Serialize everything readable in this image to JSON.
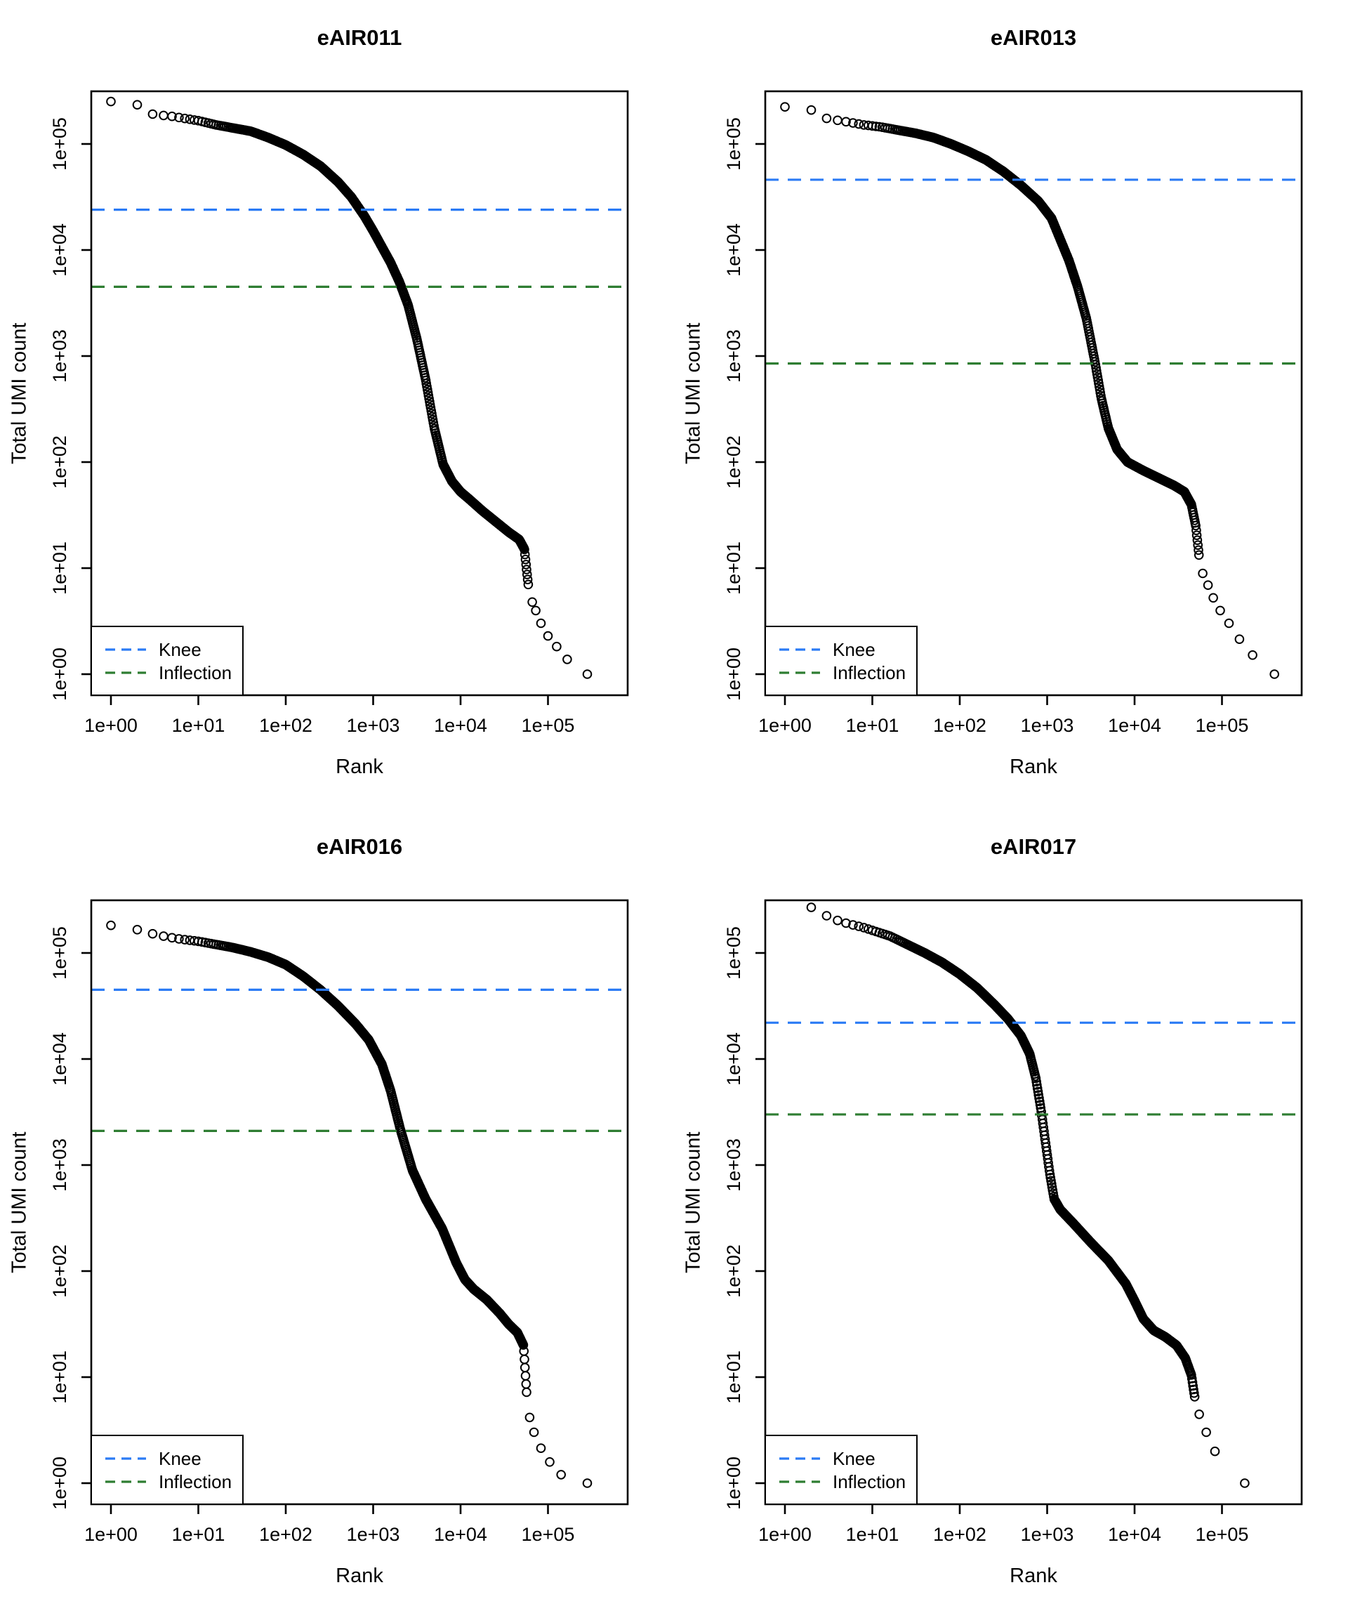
{
  "legend": {
    "items": [
      {
        "label": "Knee",
        "color": "#2b7bf5"
      },
      {
        "label": "Inflection",
        "color": "#2e7d32"
      }
    ]
  },
  "point_color": "#000000",
  "chart_data": [
    {
      "type": "scatter",
      "title": "eAIR011",
      "xlabel": "Rank",
      "ylabel": "Total UMI count",
      "x_scale": "log10",
      "y_scale": "log10",
      "x_tick_labels": [
        "1e+00",
        "1e+01",
        "1e+02",
        "1e+03",
        "1e+04",
        "1e+05"
      ],
      "y_tick_labels": [
        "1e+00",
        "1e+01",
        "1e+02",
        "1e+03",
        "1e+04",
        "1e+05"
      ],
      "xlim_log10": [
        -0.23,
        5.91
      ],
      "ylim_log10": [
        -0.2,
        5.5
      ],
      "knee": 24000,
      "inflection": 4500,
      "curve_points_log10": [
        [
          0.0,
          5.4
        ],
        [
          0.3,
          5.37
        ],
        [
          0.48,
          5.28
        ],
        [
          0.7,
          5.26
        ],
        [
          0.85,
          5.24
        ],
        [
          1.0,
          5.22
        ],
        [
          1.2,
          5.18
        ],
        [
          1.4,
          5.15
        ],
        [
          1.6,
          5.12
        ],
        [
          1.8,
          5.06
        ],
        [
          2.0,
          4.99
        ],
        [
          2.2,
          4.9
        ],
        [
          2.4,
          4.79
        ],
        [
          2.6,
          4.64
        ],
        [
          2.75,
          4.5
        ],
        [
          2.9,
          4.32
        ],
        [
          3.0,
          4.18
        ],
        [
          3.1,
          4.03
        ],
        [
          3.2,
          3.88
        ],
        [
          3.3,
          3.7
        ],
        [
          3.4,
          3.48
        ],
        [
          3.5,
          3.16
        ],
        [
          3.6,
          2.78
        ],
        [
          3.7,
          2.32
        ],
        [
          3.8,
          1.98
        ],
        [
          3.9,
          1.82
        ],
        [
          4.0,
          1.72
        ],
        [
          4.1,
          1.65
        ],
        [
          4.25,
          1.54
        ],
        [
          4.4,
          1.44
        ],
        [
          4.55,
          1.34
        ],
        [
          4.67,
          1.27
        ],
        [
          4.73,
          1.18
        ],
        [
          4.78,
          0.8
        ]
      ],
      "band_end_log10_rank": 4.78,
      "tail_points_log10": [
        [
          4.82,
          0.68
        ],
        [
          4.86,
          0.6
        ],
        [
          4.92,
          0.48
        ],
        [
          5.0,
          0.36
        ],
        [
          5.1,
          0.26
        ],
        [
          5.22,
          0.14
        ],
        [
          5.45,
          0.0
        ]
      ]
    },
    {
      "type": "scatter",
      "title": "eAIR013",
      "xlabel": "Rank",
      "ylabel": "Total UMI count",
      "x_scale": "log10",
      "y_scale": "log10",
      "x_tick_labels": [
        "1e+00",
        "1e+01",
        "1e+02",
        "1e+03",
        "1e+04",
        "1e+05"
      ],
      "y_tick_labels": [
        "1e+00",
        "1e+01",
        "1e+02",
        "1e+03",
        "1e+04",
        "1e+05"
      ],
      "xlim_log10": [
        -0.23,
        5.91
      ],
      "ylim_log10": [
        -0.2,
        5.5
      ],
      "knee": 46000,
      "inflection": 850,
      "curve_points_log10": [
        [
          0.0,
          5.35
        ],
        [
          0.3,
          5.32
        ],
        [
          0.48,
          5.24
        ],
        [
          0.7,
          5.21
        ],
        [
          0.9,
          5.18
        ],
        [
          1.1,
          5.16
        ],
        [
          1.3,
          5.13
        ],
        [
          1.5,
          5.1
        ],
        [
          1.7,
          5.06
        ],
        [
          1.9,
          5.0
        ],
        [
          2.1,
          4.93
        ],
        [
          2.3,
          4.85
        ],
        [
          2.5,
          4.74
        ],
        [
          2.7,
          4.61
        ],
        [
          2.9,
          4.46
        ],
        [
          3.05,
          4.3
        ],
        [
          3.15,
          4.1
        ],
        [
          3.25,
          3.9
        ],
        [
          3.35,
          3.65
        ],
        [
          3.45,
          3.35
        ],
        [
          3.55,
          2.93
        ],
        [
          3.62,
          2.6
        ],
        [
          3.7,
          2.32
        ],
        [
          3.8,
          2.12
        ],
        [
          3.92,
          2.0
        ],
        [
          4.1,
          1.92
        ],
        [
          4.3,
          1.84
        ],
        [
          4.45,
          1.78
        ],
        [
          4.57,
          1.72
        ],
        [
          4.65,
          1.6
        ],
        [
          4.7,
          1.4
        ],
        [
          4.74,
          1.1
        ]
      ],
      "band_end_log10_rank": 4.74,
      "tail_points_log10": [
        [
          4.78,
          0.95
        ],
        [
          4.84,
          0.84
        ],
        [
          4.9,
          0.72
        ],
        [
          4.98,
          0.6
        ],
        [
          5.08,
          0.48
        ],
        [
          5.2,
          0.33
        ],
        [
          5.35,
          0.18
        ],
        [
          5.6,
          0.0
        ]
      ]
    },
    {
      "type": "scatter",
      "title": "eAIR016",
      "xlabel": "Rank",
      "ylabel": "Total UMI count",
      "x_scale": "log10",
      "y_scale": "log10",
      "x_tick_labels": [
        "1e+00",
        "1e+01",
        "1e+02",
        "1e+03",
        "1e+04",
        "1e+05"
      ],
      "y_tick_labels": [
        "1e+00",
        "1e+01",
        "1e+02",
        "1e+03",
        "1e+04",
        "1e+05"
      ],
      "xlim_log10": [
        -0.23,
        5.91
      ],
      "ylim_log10": [
        -0.2,
        5.5
      ],
      "knee": 45000,
      "inflection": 2100,
      "curve_points_log10": [
        [
          0.0,
          5.26
        ],
        [
          0.3,
          5.22
        ],
        [
          0.48,
          5.18
        ],
        [
          0.65,
          5.15
        ],
        [
          0.8,
          5.13
        ],
        [
          1.0,
          5.11
        ],
        [
          1.2,
          5.08
        ],
        [
          1.4,
          5.05
        ],
        [
          1.6,
          5.01
        ],
        [
          1.8,
          4.96
        ],
        [
          2.0,
          4.89
        ],
        [
          2.2,
          4.78
        ],
        [
          2.4,
          4.65
        ],
        [
          2.6,
          4.5
        ],
        [
          2.8,
          4.33
        ],
        [
          2.95,
          4.18
        ],
        [
          3.1,
          3.95
        ],
        [
          3.2,
          3.7
        ],
        [
          3.31,
          3.34
        ],
        [
          3.45,
          2.95
        ],
        [
          3.6,
          2.68
        ],
        [
          3.79,
          2.4
        ],
        [
          3.95,
          2.08
        ],
        [
          4.05,
          1.92
        ],
        [
          4.15,
          1.83
        ],
        [
          4.3,
          1.73
        ],
        [
          4.45,
          1.6
        ],
        [
          4.55,
          1.5
        ],
        [
          4.65,
          1.42
        ],
        [
          4.72,
          1.3
        ],
        [
          4.76,
          0.8
        ]
      ],
      "band_end_log10_rank": 4.76,
      "tail_points_log10": [
        [
          4.79,
          0.62
        ],
        [
          4.84,
          0.48
        ],
        [
          4.92,
          0.33
        ],
        [
          5.02,
          0.2
        ],
        [
          5.15,
          0.08
        ],
        [
          5.45,
          0.0
        ]
      ]
    },
    {
      "type": "scatter",
      "title": "eAIR017",
      "xlabel": "Rank",
      "ylabel": "Total UMI count",
      "x_scale": "log10",
      "y_scale": "log10",
      "x_tick_labels": [
        "1e+00",
        "1e+01",
        "1e+02",
        "1e+03",
        "1e+04",
        "1e+05"
      ],
      "y_tick_labels": [
        "1e+00",
        "1e+01",
        "1e+02",
        "1e+03",
        "1e+04",
        "1e+05"
      ],
      "xlim_log10": [
        -0.23,
        5.91
      ],
      "ylim_log10": [
        -0.2,
        5.5
      ],
      "knee": 22000,
      "inflection": 3000,
      "curve_points_log10": [
        [
          0.0,
          5.55
        ],
        [
          0.3,
          5.43
        ],
        [
          0.48,
          5.35
        ],
        [
          0.62,
          5.3
        ],
        [
          0.75,
          5.27
        ],
        [
          0.9,
          5.24
        ],
        [
          1.05,
          5.2
        ],
        [
          1.2,
          5.16
        ],
        [
          1.4,
          5.08
        ],
        [
          1.6,
          5.0
        ],
        [
          1.8,
          4.91
        ],
        [
          2.0,
          4.8
        ],
        [
          2.2,
          4.67
        ],
        [
          2.4,
          4.51
        ],
        [
          2.55,
          4.38
        ],
        [
          2.7,
          4.22
        ],
        [
          2.8,
          4.05
        ],
        [
          2.87,
          3.82
        ],
        [
          2.93,
          3.52
        ],
        [
          2.98,
          3.22
        ],
        [
          3.03,
          2.92
        ],
        [
          3.08,
          2.68
        ],
        [
          3.15,
          2.58
        ],
        [
          3.3,
          2.45
        ],
        [
          3.5,
          2.27
        ],
        [
          3.7,
          2.1
        ],
        [
          3.9,
          1.88
        ],
        [
          4.0,
          1.72
        ],
        [
          4.1,
          1.55
        ],
        [
          4.22,
          1.44
        ],
        [
          4.35,
          1.38
        ],
        [
          4.48,
          1.3
        ],
        [
          4.58,
          1.18
        ],
        [
          4.65,
          1.02
        ],
        [
          4.69,
          0.8
        ]
      ],
      "band_end_log10_rank": 4.69,
      "tail_points_log10": [
        [
          4.74,
          0.65
        ],
        [
          4.82,
          0.48
        ],
        [
          4.92,
          0.3
        ],
        [
          5.26,
          0.0
        ]
      ]
    }
  ]
}
